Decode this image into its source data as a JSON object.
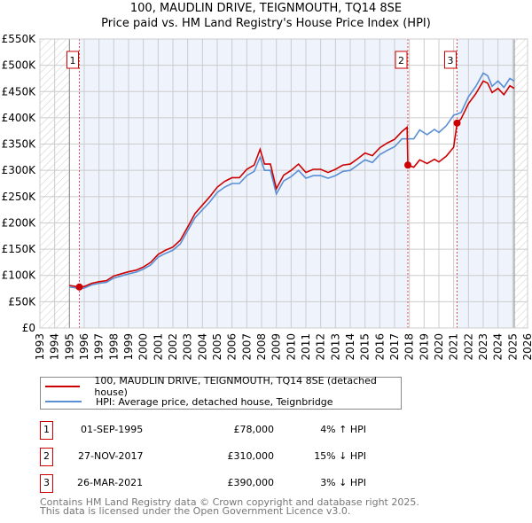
{
  "chart_data": {
    "type": "line",
    "title": "100, MAUDLIN DRIVE, TEIGNMOUTH, TQ14 8SE",
    "subtitle": "Price paid vs. HM Land Registry's House Price Index (HPI)",
    "xlim": [
      1993,
      2026
    ],
    "ylim": [
      0,
      550000
    ],
    "y_ticks": [
      0,
      50000,
      100000,
      150000,
      200000,
      250000,
      300000,
      350000,
      400000,
      450000,
      500000,
      550000
    ],
    "y_tick_labels": [
      "£0",
      "£50K",
      "£100K",
      "£150K",
      "£200K",
      "£250K",
      "£300K",
      "£350K",
      "£400K",
      "£450K",
      "£500K",
      "£550K"
    ],
    "x_tick_labels": [
      "1993",
      "1994",
      "1995",
      "1996",
      "1997",
      "1998",
      "1999",
      "2000",
      "2001",
      "2002",
      "2003",
      "2004",
      "2005",
      "2006",
      "2007",
      "2008",
      "2009",
      "2010",
      "2011",
      "2012",
      "2013",
      "2014",
      "2015",
      "2016",
      "2017",
      "2018",
      "2019",
      "2020",
      "2021",
      "2022",
      "2023",
      "2024",
      "2025",
      "2026"
    ],
    "grid": true,
    "data_range": [
      1995,
      2025.1
    ],
    "series": [
      {
        "name": "100, MAUDLIN DRIVE, TEIGNMOUTH, TQ14 8SE (detached house)",
        "color": "#cc0000",
        "x": [
          1995.0,
          1995.67,
          1996,
          1996.5,
          1997,
          1997.5,
          1998,
          1998.5,
          1999,
          1999.5,
          2000,
          2000.5,
          2001,
          2001.5,
          2002,
          2002.5,
          2003,
          2003.5,
          2004,
          2004.5,
          2005,
          2005.5,
          2006,
          2006.5,
          2007,
          2007.5,
          2007.9,
          2008.2,
          2008.6,
          2009.0,
          2009.5,
          2010,
          2010.5,
          2011,
          2011.5,
          2012,
          2012.5,
          2013,
          2013.5,
          2014,
          2014.5,
          2015,
          2015.5,
          2016,
          2016.5,
          2017,
          2017.5,
          2017.85,
          2017.9,
          2018.3,
          2018.7,
          2019.2,
          2019.7,
          2020,
          2020.5,
          2021.0,
          2021.23,
          2021.5,
          2022,
          2022.5,
          2023,
          2023.3,
          2023.6,
          2024,
          2024.4,
          2024.8,
          2025.1
        ],
        "y": [
          81,
          78,
          79,
          85,
          88,
          90,
          99,
          103,
          107,
          110,
          116,
          125,
          140,
          148,
          154,
          167,
          192,
          218,
          234,
          250,
          268,
          279,
          286,
          286,
          302,
          310,
          340,
          312,
          312,
          265,
          291,
          300,
          312,
          296,
          302,
          302,
          296,
          302,
          310,
          312,
          322,
          333,
          328,
          343,
          352,
          359,
          374,
          382,
          310,
          306,
          320,
          313,
          321,
          316,
          327,
          344,
          390,
          398,
          427,
          446,
          470,
          466,
          448,
          456,
          444,
          461,
          456
        ]
      },
      {
        "name": "HPI: Average price, detached house, Teignbridge",
        "color": "#5b8fd4",
        "x": [
          1995.0,
          1995.7,
          1996,
          1996.5,
          1997,
          1997.5,
          1998,
          1998.5,
          1999,
          1999.5,
          2000,
          2000.5,
          2001,
          2001.5,
          2002,
          2002.5,
          2003,
          2003.5,
          2004,
          2004.5,
          2005,
          2005.5,
          2006,
          2006.5,
          2007,
          2007.5,
          2007.9,
          2008.2,
          2008.6,
          2009.0,
          2009.5,
          2010,
          2010.5,
          2011,
          2011.5,
          2012,
          2012.5,
          2013,
          2013.5,
          2014,
          2014.5,
          2015,
          2015.5,
          2016,
          2016.5,
          2017,
          2017.5,
          2017.9,
          2018.3,
          2018.7,
          2019.2,
          2019.7,
          2020,
          2020.5,
          2021,
          2021.5,
          2022,
          2022.5,
          2023,
          2023.3,
          2023.6,
          2024,
          2024.4,
          2024.8,
          2025.1
        ],
        "y": [
          78,
          75,
          76,
          82,
          85,
          87,
          95,
          99,
          103,
          106,
          112,
          120,
          135,
          142,
          148,
          160,
          185,
          210,
          225,
          240,
          258,
          268,
          275,
          275,
          290,
          298,
          325,
          300,
          300,
          255,
          280,
          288,
          300,
          285,
          290,
          290,
          285,
          290,
          298,
          300,
          310,
          320,
          315,
          330,
          338,
          345,
          360,
          360,
          360,
          377,
          368,
          378,
          372,
          385,
          405,
          410,
          440,
          460,
          485,
          480,
          460,
          470,
          458,
          475,
          470
        ]
      }
    ],
    "y_unit": "thousands GBP",
    "sales": [
      {
        "n": "1",
        "x": 1995.67,
        "y": 78,
        "date": "01-SEP-1995",
        "price": "£78,000",
        "hpi": "4% ↑ HPI"
      },
      {
        "n": "2",
        "x": 2017.9,
        "y": 310,
        "date": "27-NOV-2017",
        "price": "£310,000",
        "hpi": "15% ↓ HPI"
      },
      {
        "n": "3",
        "x": 2021.23,
        "y": 390,
        "date": "26-MAR-2021",
        "price": "£390,000",
        "hpi": "3% ↓ HPI"
      }
    ],
    "legend_placement": "bottom"
  },
  "footer": {
    "line1": "Contains HM Land Registry data © Crown copyright and database right 2025.",
    "line2": "This data is licensed under the Open Government Licence v3.0."
  }
}
